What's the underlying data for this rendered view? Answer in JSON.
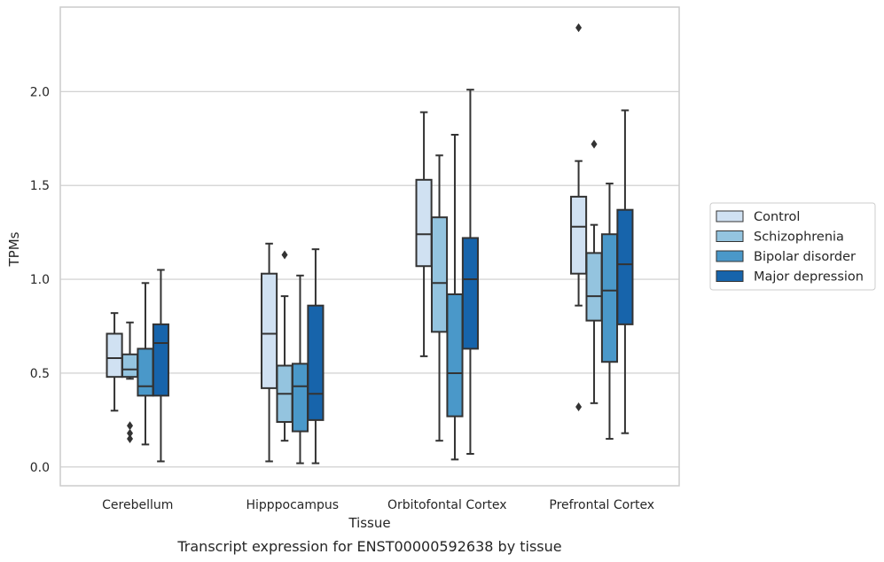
{
  "caption": "Transcript expression for ENST00000592638 by tissue",
  "chart_data": {
    "type": "box",
    "xlabel": "Tissue",
    "ylabel": "TPMs",
    "ylim": [
      -0.1,
      2.45
    ],
    "yticks": [
      "0.0",
      "0.5",
      "1.0",
      "1.5",
      "2.0"
    ],
    "grid": "horizontal",
    "legend_position": "right",
    "categories": [
      "Cerebellum",
      "Hipppocampus",
      "Orbitofontal Cortex",
      "Prefrontal Cortex"
    ],
    "series": [
      {
        "name": "Control",
        "color": "#d0e1f2",
        "boxes": [
          {
            "whislo": 0.3,
            "q1": 0.48,
            "med": 0.58,
            "q3": 0.71,
            "whishi": 0.82,
            "fliers": []
          },
          {
            "whislo": 0.03,
            "q1": 0.42,
            "med": 0.71,
            "q3": 1.03,
            "whishi": 1.19,
            "fliers": []
          },
          {
            "whislo": 0.59,
            "q1": 1.07,
            "med": 1.24,
            "q3": 1.53,
            "whishi": 1.89,
            "fliers": []
          },
          {
            "whislo": 0.86,
            "q1": 1.03,
            "med": 1.28,
            "q3": 1.44,
            "whishi": 1.63,
            "fliers": [
              0.32,
              2.34
            ]
          }
        ]
      },
      {
        "name": "Schizophrenia",
        "color": "#94c4df",
        "boxes": [
          {
            "whislo": 0.47,
            "q1": 0.48,
            "med": 0.52,
            "q3": 0.6,
            "whishi": 0.77,
            "fliers": [
              0.15,
              0.18,
              0.22
            ]
          },
          {
            "whislo": 0.14,
            "q1": 0.24,
            "med": 0.39,
            "q3": 0.54,
            "whishi": 0.91,
            "fliers": [
              1.13
            ]
          },
          {
            "whislo": 0.14,
            "q1": 0.72,
            "med": 0.98,
            "q3": 1.33,
            "whishi": 1.66,
            "fliers": []
          },
          {
            "whislo": 0.34,
            "q1": 0.78,
            "med": 0.91,
            "q3": 1.14,
            "whishi": 1.29,
            "fliers": [
              1.72
            ]
          }
        ]
      },
      {
        "name": "Bipolar disorder",
        "color": "#4a98c9",
        "boxes": [
          {
            "whislo": 0.12,
            "q1": 0.38,
            "med": 0.43,
            "q3": 0.63,
            "whishi": 0.98,
            "fliers": []
          },
          {
            "whislo": 0.02,
            "q1": 0.19,
            "med": 0.43,
            "q3": 0.55,
            "whishi": 1.02,
            "fliers": []
          },
          {
            "whislo": 0.04,
            "q1": 0.27,
            "med": 0.5,
            "q3": 0.92,
            "whishi": 1.77,
            "fliers": []
          },
          {
            "whislo": 0.15,
            "q1": 0.56,
            "med": 0.94,
            "q3": 1.24,
            "whishi": 1.51,
            "fliers": []
          }
        ]
      },
      {
        "name": "Major depression",
        "color": "#1764ab",
        "boxes": [
          {
            "whislo": 0.03,
            "q1": 0.38,
            "med": 0.66,
            "q3": 0.76,
            "whishi": 1.05,
            "fliers": []
          },
          {
            "whislo": 0.02,
            "q1": 0.25,
            "med": 0.39,
            "q3": 0.86,
            "whishi": 1.16,
            "fliers": []
          },
          {
            "whislo": 0.07,
            "q1": 0.63,
            "med": 1.0,
            "q3": 1.22,
            "whishi": 2.01,
            "fliers": []
          },
          {
            "whislo": 0.18,
            "q1": 0.76,
            "med": 1.08,
            "q3": 1.37,
            "whishi": 1.9,
            "fliers": []
          }
        ]
      }
    ]
  }
}
